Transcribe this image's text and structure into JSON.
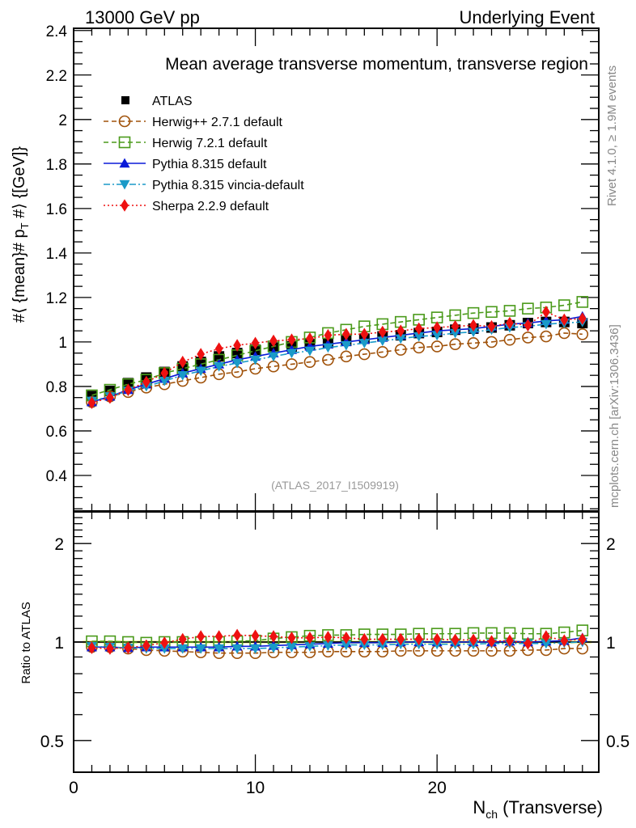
{
  "header": {
    "left": "13000 GeV pp",
    "right": "Underlying Event"
  },
  "side_text": {
    "rivet": "Rivet 4.1.0, ≥ 1.9M events",
    "mcplots": "mcplots.cern.ch [arXiv:1306.3436]"
  },
  "chart_data": [
    {
      "type": "scatter",
      "panel": "main",
      "title": "Mean average transverse momentum, transverse region",
      "annotation": "(ATLAS_2017_I1509919)",
      "xlabel": "N_ch (Transverse)",
      "ylabel": "#⟨ {mean}# p_T #⟩ {[GeV]}",
      "xlim": [
        0,
        28.9
      ],
      "ylim": [
        0.24,
        2.41
      ],
      "yticks": [
        0.4,
        0.6,
        0.8,
        1,
        1.2,
        1.4,
        1.6,
        1.8,
        2,
        2.2,
        2.4
      ],
      "ytick_labels": [
        "0.4",
        "0.6",
        "0.8",
        "1",
        "1.2",
        "1.4",
        "1.6",
        "1.8",
        "2",
        "2.2",
        "2.4"
      ],
      "legend_position": "top-left",
      "x": [
        1,
        2,
        3,
        4,
        5,
        6,
        7,
        8,
        9,
        10,
        11,
        12,
        13,
        14,
        15,
        16,
        17,
        18,
        19,
        20,
        21,
        22,
        23,
        24,
        25,
        26,
        27,
        28
      ],
      "series": [
        {
          "name": "ATLAS",
          "color": "#000000",
          "marker": "square-filled",
          "line": "none",
          "values": [
            0.757,
            0.78,
            0.815,
            0.84,
            0.865,
            0.89,
            0.91,
            0.935,
            0.95,
            0.965,
            0.975,
            0.98,
            0.99,
            0.995,
            1.005,
            1.015,
            1.025,
            1.03,
            1.04,
            1.045,
            1.055,
            1.06,
            1.065,
            1.075,
            1.085,
            1.09,
            1.09,
            1.085
          ]
        },
        {
          "name": "Herwig++ 2.7.1 default",
          "color": "#a0520a",
          "marker": "circle-open",
          "line": "dashed",
          "values": [
            0.73,
            0.755,
            0.775,
            0.795,
            0.81,
            0.825,
            0.84,
            0.855,
            0.865,
            0.88,
            0.89,
            0.9,
            0.91,
            0.92,
            0.935,
            0.945,
            0.955,
            0.965,
            0.975,
            0.98,
            0.99,
            0.995,
            1.0,
            1.01,
            1.02,
            1.025,
            1.04,
            1.035
          ]
        },
        {
          "name": "Herwig 7.2.1 default",
          "color": "#4a9a1a",
          "marker": "square-open",
          "line": "dashed",
          "values": [
            0.76,
            0.785,
            0.81,
            0.83,
            0.86,
            0.88,
            0.9,
            0.92,
            0.94,
            0.96,
            0.98,
            1.0,
            1.02,
            1.04,
            1.055,
            1.07,
            1.08,
            1.09,
            1.1,
            1.11,
            1.12,
            1.13,
            1.135,
            1.14,
            1.15,
            1.155,
            1.165,
            1.18
          ]
        },
        {
          "name": "Pythia 8.315 default",
          "color": "#0a1ad8",
          "marker": "triangle-up",
          "line": "solid",
          "values": [
            0.73,
            0.755,
            0.785,
            0.81,
            0.835,
            0.86,
            0.88,
            0.9,
            0.92,
            0.935,
            0.95,
            0.965,
            0.98,
            0.99,
            1.0,
            1.01,
            1.02,
            1.03,
            1.04,
            1.05,
            1.055,
            1.06,
            1.07,
            1.08,
            1.085,
            1.095,
            1.1,
            1.115
          ]
        },
        {
          "name": "Pythia 8.315 vincia-default",
          "color": "#1a9ac8",
          "marker": "triangle-down",
          "line": "dashdot",
          "values": [
            0.735,
            0.755,
            0.78,
            0.8,
            0.825,
            0.85,
            0.87,
            0.89,
            0.905,
            0.92,
            0.935,
            0.95,
            0.96,
            0.975,
            0.985,
            0.995,
            1.005,
            1.015,
            1.025,
            1.03,
            1.04,
            1.045,
            1.055,
            1.065,
            1.07,
            1.08,
            1.085,
            1.09
          ]
        },
        {
          "name": "Sherpa 2.2.9 default",
          "color": "#ee1111",
          "marker": "diamond",
          "line": "dotted",
          "values": [
            0.727,
            0.75,
            0.785,
            0.82,
            0.86,
            0.91,
            0.945,
            0.97,
            0.985,
            0.995,
            1.005,
            1.01,
            1.015,
            1.03,
            1.035,
            1.035,
            1.045,
            1.05,
            1.06,
            1.065,
            1.07,
            1.075,
            1.07,
            1.085,
            1.075,
            1.135,
            1.1,
            1.105
          ]
        }
      ]
    },
    {
      "type": "scatter",
      "panel": "ratio",
      "xlabel": "N_ch (Transverse)",
      "ylabel": "Ratio to ATLAS",
      "yscale": "log",
      "xlim": [
        0,
        28.9
      ],
      "ylim": [
        0.4,
        2.5
      ],
      "yticks": [
        0.5,
        1,
        2
      ],
      "ytick_labels": [
        "0.5",
        "1",
        "2"
      ],
      "xticks": [
        0,
        10,
        20
      ],
      "xtick_labels": [
        "0",
        "10",
        "20"
      ],
      "reference_line": 1,
      "x": [
        1,
        2,
        3,
        4,
        5,
        6,
        7,
        8,
        9,
        10,
        11,
        12,
        13,
        14,
        15,
        16,
        17,
        18,
        19,
        20,
        21,
        22,
        23,
        24,
        25,
        26,
        27,
        28
      ],
      "series": [
        {
          "name": "Herwig++ 2.7.1 default",
          "values": [
            0.965,
            0.965,
            0.955,
            0.945,
            0.94,
            0.935,
            0.93,
            0.925,
            0.925,
            0.925,
            0.93,
            0.93,
            0.93,
            0.935,
            0.935,
            0.935,
            0.935,
            0.94,
            0.94,
            0.94,
            0.94,
            0.94,
            0.94,
            0.94,
            0.945,
            0.945,
            0.955,
            0.955
          ]
        },
        {
          "name": "Herwig 7.2.1 default",
          "values": [
            1.005,
            1.005,
            1.0,
            0.995,
            1.0,
            1.0,
            1.0,
            1.0,
            1.005,
            1.01,
            1.025,
            1.035,
            1.045,
            1.05,
            1.05,
            1.055,
            1.055,
            1.055,
            1.06,
            1.06,
            1.06,
            1.065,
            1.065,
            1.065,
            1.06,
            1.06,
            1.07,
            1.085
          ]
        },
        {
          "name": "Pythia 8.315 default",
          "values": [
            0.965,
            0.965,
            0.96,
            0.965,
            0.965,
            0.965,
            0.965,
            0.965,
            0.97,
            0.97,
            0.975,
            0.98,
            0.985,
            0.99,
            0.995,
            0.995,
            0.995,
            1.0,
            1.0,
            1.0,
            1.0,
            1.0,
            1.0,
            1.005,
            1.0,
            1.005,
            1.01,
            1.03
          ]
        },
        {
          "name": "Pythia 8.315 vincia-default",
          "values": [
            0.97,
            0.965,
            0.96,
            0.955,
            0.955,
            0.955,
            0.955,
            0.955,
            0.955,
            0.955,
            0.96,
            0.965,
            0.97,
            0.975,
            0.98,
            0.98,
            0.98,
            0.985,
            0.985,
            0.985,
            0.985,
            0.985,
            0.99,
            0.99,
            0.99,
            0.99,
            0.995,
            1.0
          ]
        },
        {
          "name": "Sherpa 2.2.9 default",
          "values": [
            0.96,
            0.955,
            0.96,
            0.975,
            0.995,
            1.02,
            1.04,
            1.04,
            1.05,
            1.045,
            1.04,
            1.03,
            1.03,
            1.035,
            1.03,
            1.02,
            1.02,
            1.02,
            1.02,
            1.02,
            1.015,
            1.015,
            1.005,
            1.01,
            0.99,
            1.04,
            1.01,
            1.02
          ]
        }
      ]
    }
  ]
}
